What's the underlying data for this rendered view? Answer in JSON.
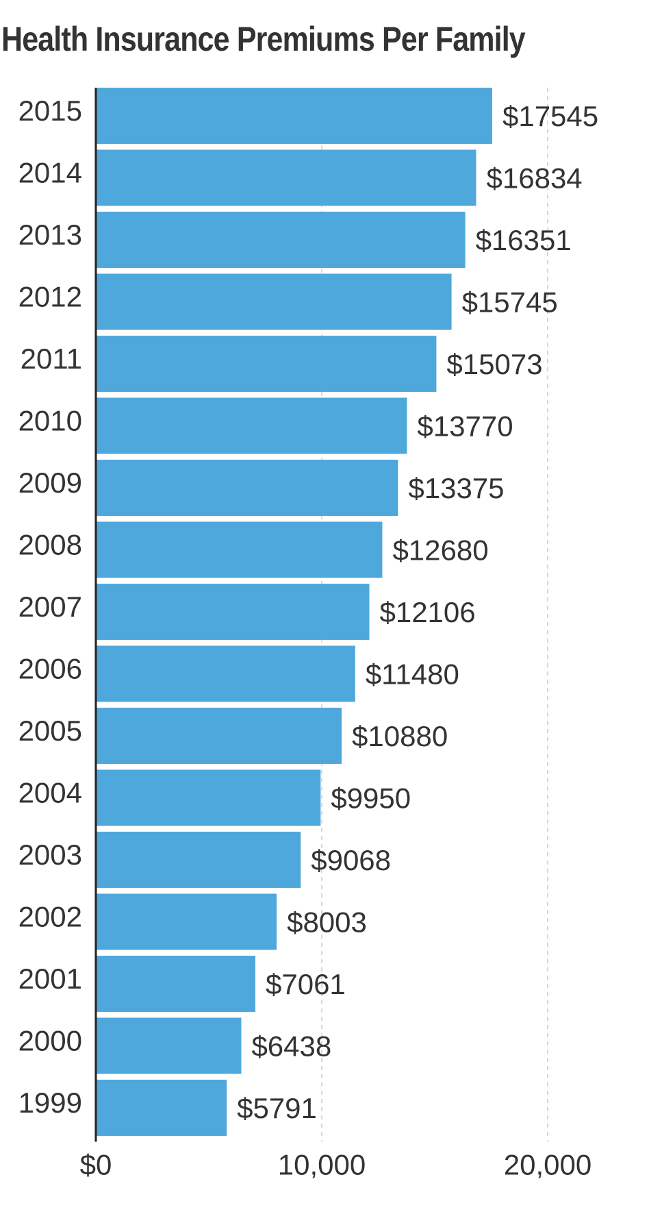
{
  "chart_data": {
    "type": "bar",
    "orientation": "horizontal",
    "title": "Health Insurance Premiums Per Family",
    "xlabel": "",
    "ylabel": "",
    "categories": [
      "2015",
      "2014",
      "2013",
      "2012",
      "2011",
      "2010",
      "2009",
      "2008",
      "2007",
      "2006",
      "2005",
      "2004",
      "2003",
      "2002",
      "2001",
      "2000",
      "1999"
    ],
    "values": [
      17545,
      16834,
      16351,
      15745,
      15073,
      13770,
      13375,
      12680,
      12106,
      11480,
      10880,
      9950,
      9068,
      8003,
      7061,
      6438,
      5791
    ],
    "value_labels": [
      "$17545",
      "$16834",
      "$16351",
      "$15745",
      "$15073",
      "$13770",
      "$13375",
      "$12680",
      "$12106",
      "$11480",
      "$10880",
      "$9950",
      "$9068",
      "$8003",
      "$7061",
      "$6438",
      "$5791"
    ],
    "xlim": [
      0,
      20000
    ],
    "x_ticks": [
      0,
      10000,
      20000
    ],
    "x_tick_labels": [
      "$0",
      "10,000",
      "20,000"
    ],
    "grid": "vertical dashed",
    "legend": "none",
    "colors": {
      "bar": "#4fa8dc",
      "text": "#333333",
      "axis": "#222222",
      "grid": "#cccccc"
    }
  }
}
